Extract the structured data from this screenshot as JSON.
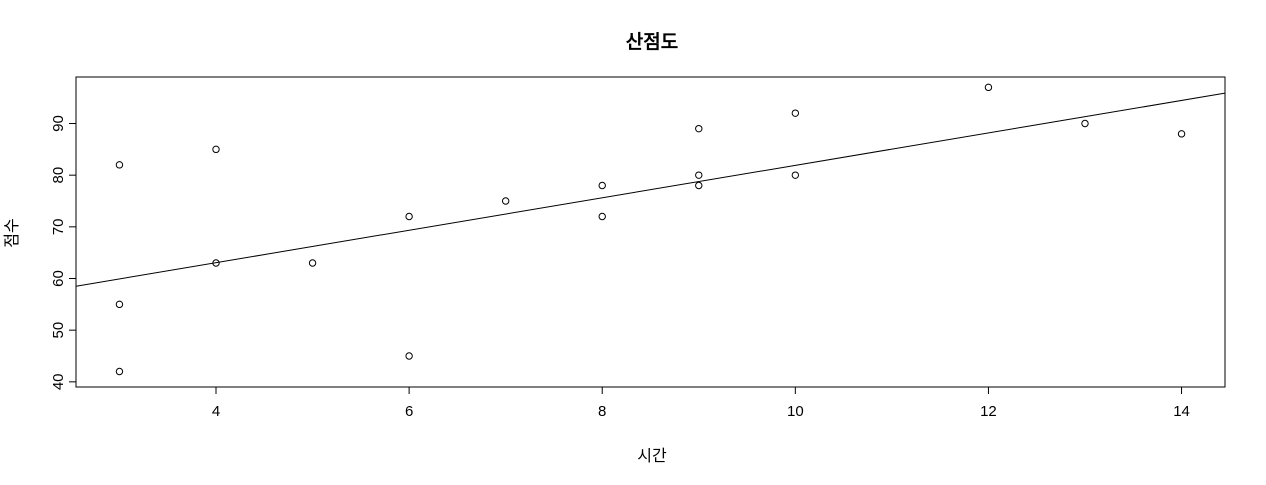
{
  "chart_data": {
    "type": "scatter",
    "title": "산점도",
    "xlabel": "시간",
    "ylabel": "점수",
    "xlim": [
      2.55,
      14.45
    ],
    "ylim": [
      39,
      99
    ],
    "xticks": [
      4,
      6,
      8,
      10,
      12,
      14
    ],
    "yticks": [
      40,
      50,
      60,
      70,
      80,
      90
    ],
    "points": [
      {
        "x": 3,
        "y": 82
      },
      {
        "x": 3,
        "y": 55
      },
      {
        "x": 3,
        "y": 42
      },
      {
        "x": 4,
        "y": 85
      },
      {
        "x": 4,
        "y": 63
      },
      {
        "x": 5,
        "y": 63
      },
      {
        "x": 6,
        "y": 72
      },
      {
        "x": 6,
        "y": 45
      },
      {
        "x": 7,
        "y": 75
      },
      {
        "x": 8,
        "y": 78
      },
      {
        "x": 8,
        "y": 72
      },
      {
        "x": 9,
        "y": 89
      },
      {
        "x": 9,
        "y": 80
      },
      {
        "x": 9,
        "y": 78
      },
      {
        "x": 10,
        "y": 92
      },
      {
        "x": 10,
        "y": 80
      },
      {
        "x": 12,
        "y": 97
      },
      {
        "x": 13,
        "y": 90
      },
      {
        "x": 14,
        "y": 88
      }
    ],
    "fit_line": {
      "intercept": 50.5,
      "slope": 3.14
    },
    "grid": false,
    "legend": "none"
  }
}
